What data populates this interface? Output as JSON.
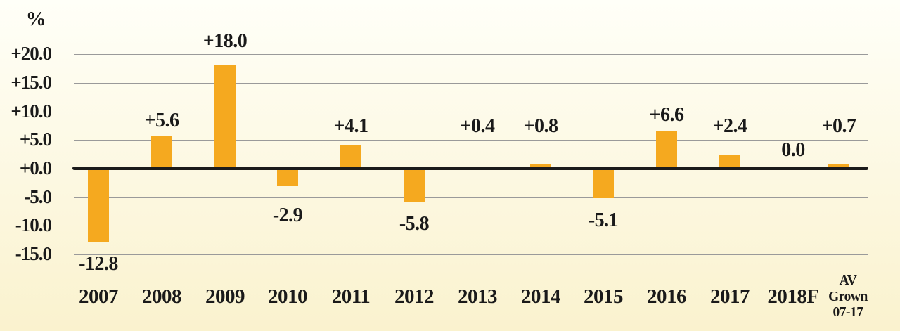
{
  "chart_data": {
    "type": "bar",
    "title": "",
    "ylabel": "%",
    "xlabel": "",
    "categories": [
      "2007",
      "2008",
      "2009",
      "2010",
      "2011",
      "2012",
      "2013",
      "2014",
      "2015",
      "2016",
      "2017",
      "2018F",
      "AV\nGrown\n07-17"
    ],
    "values": [
      -12.8,
      5.6,
      18.0,
      -2.9,
      4.1,
      -5.8,
      0.4,
      0.8,
      -5.1,
      6.6,
      2.4,
      0.0,
      0.7
    ],
    "value_labels": [
      "-12.8",
      "+5.6",
      "+18.0",
      "-2.9",
      "+4.1",
      "-5.8",
      "+0.4",
      "+0.8",
      "-5.1",
      "+6.6",
      "+2.4",
      "0.0",
      "+0.7"
    ],
    "y_ticks": [
      "+20.0",
      "+15.0",
      "+10.0",
      "+5.0",
      "+0.0",
      "-5.0",
      "-10.0",
      "-15.0"
    ],
    "y_tick_values": [
      20,
      15,
      10,
      5,
      0,
      -5,
      -10,
      -15
    ],
    "ylim": [
      -15,
      20
    ],
    "grid": true,
    "legend": "none",
    "colors": {
      "bar": "#F5A91F",
      "background_top": "#FFFFF8",
      "background_bottom": "#FAF2CE",
      "gridline": "#9A9A9A",
      "zero_axis": "#1B1B1B",
      "text": "#1A1A1A"
    }
  }
}
